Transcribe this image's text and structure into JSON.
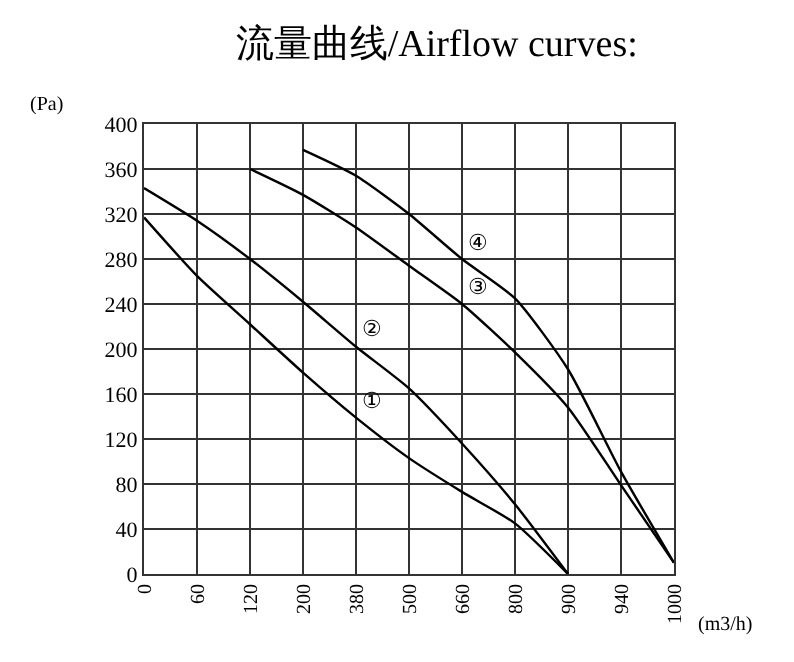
{
  "chart_data": {
    "type": "line",
    "title": "流量曲线/Airflow curves:",
    "xlabel": "(m3/h)",
    "ylabel": "(Pa)",
    "categories": [
      "0",
      "60",
      "120",
      "200",
      "380",
      "500",
      "660",
      "800",
      "900",
      "940",
      "1000"
    ],
    "series": [
      {
        "name": "①",
        "color": "#000000",
        "values": [
          317,
          265,
          222,
          179,
          139,
          103,
          73,
          45,
          0,
          null,
          null
        ]
      },
      {
        "name": "②",
        "color": "#000000",
        "values": [
          343,
          314,
          280,
          242,
          202,
          165,
          116,
          62,
          0,
          null,
          null
        ]
      },
      {
        "name": "③",
        "color": "#000000",
        "values": [
          null,
          null,
          360,
          337,
          308,
          274,
          240,
          197,
          148,
          79,
          10
        ]
      },
      {
        "name": "④",
        "color": "#000000",
        "values": [
          null,
          null,
          null,
          377,
          354,
          320,
          280,
          245,
          182,
          91,
          10
        ]
      }
    ],
    "ylim": [
      0,
      400
    ],
    "yticks": [
      0,
      40,
      80,
      120,
      160,
      200,
      240,
      280,
      320,
      360,
      400
    ],
    "grid": true,
    "marker": "none",
    "line_style": "solid"
  }
}
